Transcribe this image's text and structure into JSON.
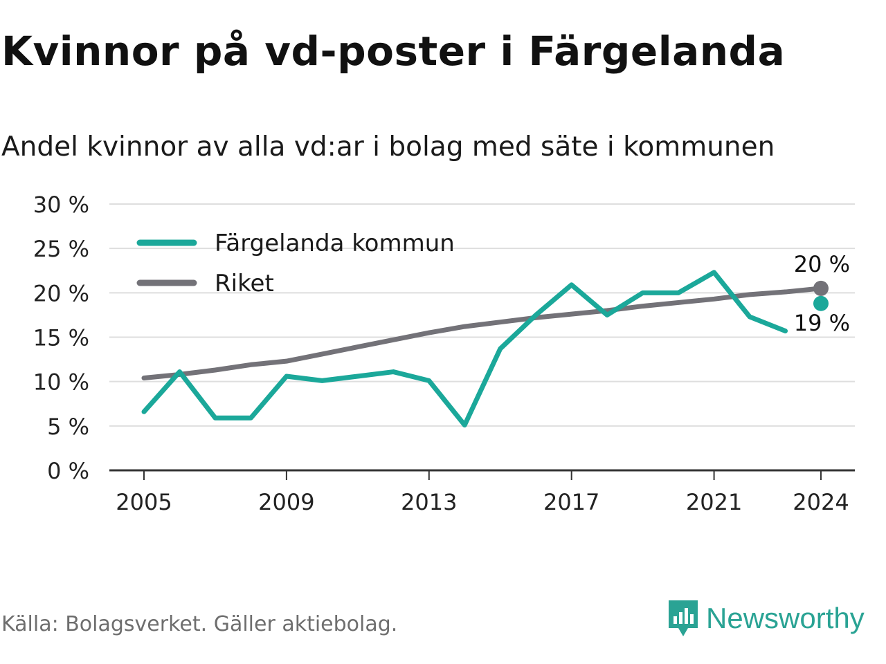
{
  "header": {
    "title": "Kvinnor på vd-poster i Färgelanda",
    "subtitle": "Andel kvinnor av alla vd:ar i bolag med säte i kommunen"
  },
  "footer": {
    "source": "Källa: Bolagsverket. Gäller aktiebolag.",
    "brand": "Newsworthy"
  },
  "colors": {
    "local": "#1ba89a",
    "national": "#737278",
    "grid": "#dedede",
    "axis": "#333333",
    "brand": "#2aa394"
  },
  "icons": [
    "newsworthy-logo-icon"
  ],
  "chart_data": {
    "type": "line",
    "title": "Kvinnor på vd-poster i Färgelanda",
    "subtitle": "Andel kvinnor av alla vd:ar i bolag med säte i kommunen",
    "xlabel": "",
    "ylabel": "",
    "x": [
      2005,
      2006,
      2007,
      2008,
      2009,
      2010,
      2011,
      2012,
      2013,
      2014,
      2015,
      2016,
      2017,
      2018,
      2019,
      2020,
      2021,
      2022,
      2023,
      2024
    ],
    "xticks": [
      2005,
      2009,
      2013,
      2017,
      2021,
      2024
    ],
    "ylim": [
      0,
      30
    ],
    "yticks": [
      0,
      5,
      10,
      15,
      20,
      25,
      30
    ],
    "ytick_labels": [
      "0 %",
      "5 %",
      "10 %",
      "15 %",
      "20 %",
      "25 %",
      "30 %"
    ],
    "grid": true,
    "legend_position": "top-left",
    "series": [
      {
        "name": "Färgelanda kommun",
        "color": "#1ba89a",
        "values": [
          6.6,
          11.1,
          5.9,
          5.9,
          10.6,
          10.1,
          10.6,
          11.1,
          10.1,
          5.1,
          13.7,
          17.5,
          20.9,
          17.5,
          20.0,
          20.0,
          22.3,
          17.3,
          15.7,
          18.8
        ],
        "end_label": "19 %"
      },
      {
        "name": "Riket",
        "color": "#737278",
        "values": [
          10.4,
          10.8,
          11.3,
          11.9,
          12.3,
          13.1,
          13.9,
          14.7,
          15.5,
          16.2,
          16.7,
          17.2,
          17.6,
          18.0,
          18.5,
          18.9,
          19.3,
          19.8,
          20.1,
          20.5
        ],
        "end_label": "20 %"
      }
    ]
  }
}
